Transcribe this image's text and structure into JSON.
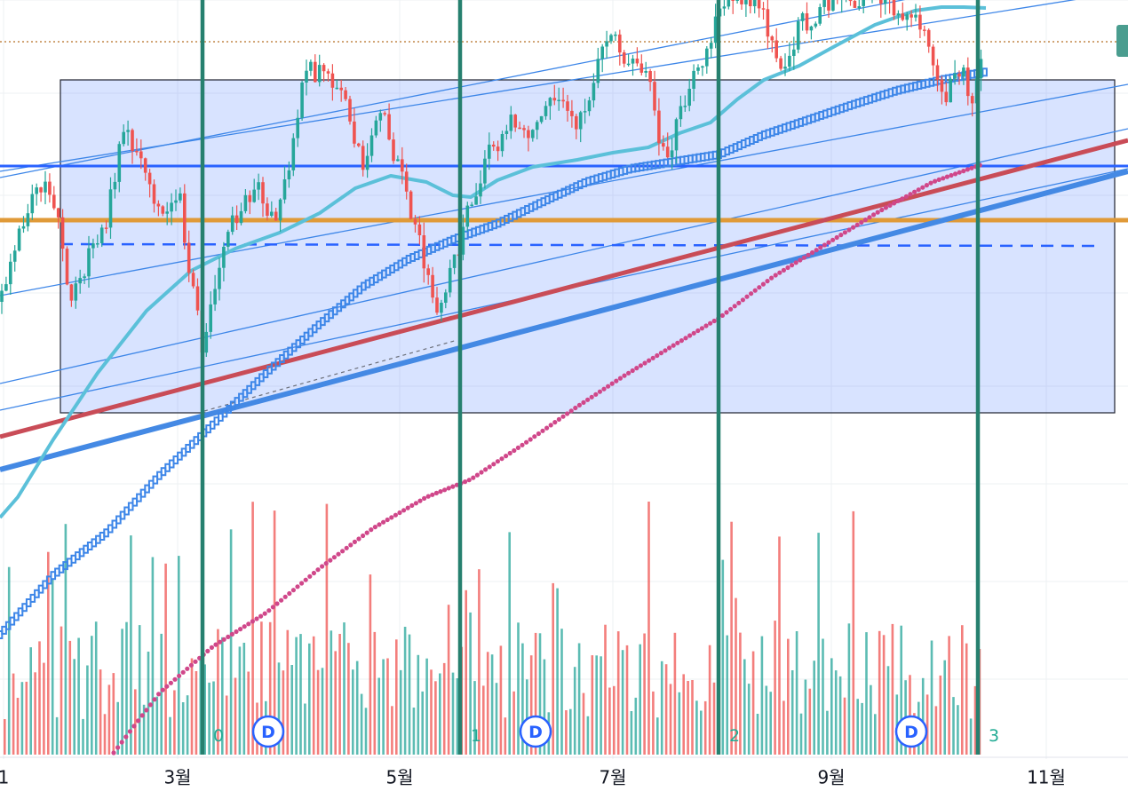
{
  "colors": {
    "up": "#26a69a",
    "down": "#ef5350",
    "box_fill": "#2962ff",
    "cycle_line": "#26806f",
    "ma_cyan": "#5bc0d9",
    "ma_blue": "#3d86e8",
    "ma_pink": "#d0478a",
    "trend_red": "#c94c57",
    "trend_blue": "#4489e4",
    "level_blue": "#2962ff",
    "level_orange": "#e09a38",
    "dotted_orange": "#c28748"
  },
  "chart_data": {
    "type": "candlestick",
    "x_axis": {
      "unit": "date",
      "ticks": [
        {
          "date": "1월",
          "label": "1"
        },
        {
          "date": "3월",
          "label": "3월"
        },
        {
          "date": "5월",
          "label": "5월"
        },
        {
          "date": "7월",
          "label": "7월"
        },
        {
          "date": "9월",
          "label": "9월"
        },
        {
          "date": "11월",
          "label": "11월"
        }
      ]
    },
    "vertical_markers": [
      {
        "label": "0"
      },
      {
        "label": "1"
      },
      {
        "label": "2"
      },
      {
        "label": "3"
      }
    ],
    "dividend_markers": [
      "D",
      "D",
      "D"
    ],
    "series": [
      {
        "type": "candles"
      },
      {
        "type": "volume"
      },
      {
        "type": "moving_average",
        "style": "solid"
      },
      {
        "type": "moving_average",
        "style": "dotted"
      },
      {
        "type": "moving_average",
        "style": "dotted"
      }
    ],
    "drawings": [
      {
        "type": "rectangle"
      },
      {
        "type": "horizontal_line"
      },
      {
        "type": "horizontal_line"
      },
      {
        "type": "horizontal_line",
        "style": "dashed"
      },
      {
        "type": "horizontal_line",
        "style": "dotted"
      },
      {
        "type": "parallel_channel"
      },
      {
        "type": "trend_line"
      },
      {
        "type": "trend_line"
      }
    ],
    "grid": true,
    "legend": "none"
  }
}
